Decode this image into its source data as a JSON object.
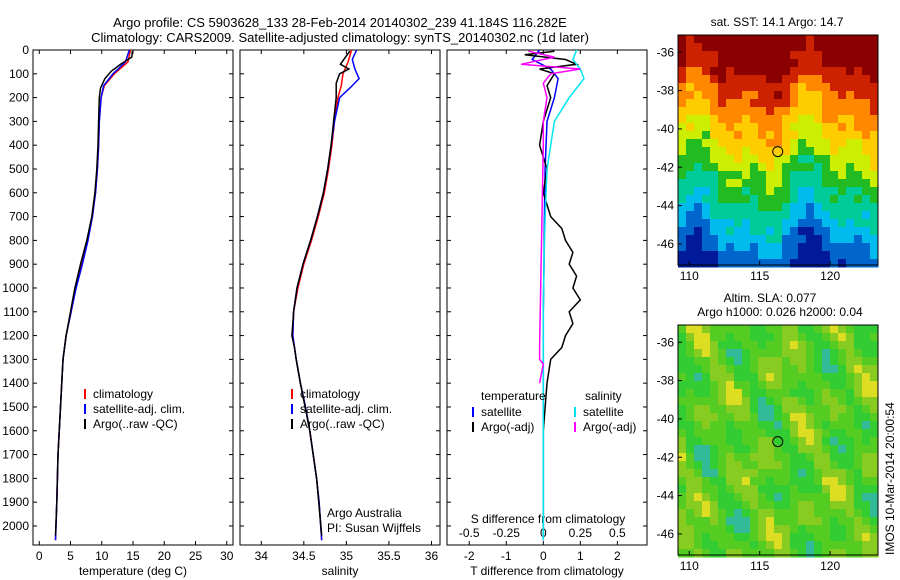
{
  "figure": {
    "title_line1": "Argo profile: CS 5903628_133 28-Feb-2014 20140302_239 41.184S 116.282E",
    "title_line2": "Climatology: CARS2009. Satellite-adjusted climatology: synTS_20140302.nc (1d later)",
    "side_label": "IMOS 10-Mar-2014 20:00:54",
    "credit_line1": "Argo Australia",
    "credit_line2": "PI: Susan Wijffels"
  },
  "chart_data": [
    {
      "type": "line",
      "panel": "temperature",
      "xlabel": "temperature (deg C)",
      "ylabel": "",
      "xlim": [
        -1,
        31
      ],
      "ylim": [
        2080,
        0
      ],
      "xticks": [
        0,
        5,
        10,
        15,
        20,
        25,
        30
      ],
      "yticks": [
        0,
        100,
        200,
        300,
        400,
        500,
        600,
        700,
        800,
        900,
        1000,
        1100,
        1200,
        1300,
        1400,
        1500,
        1600,
        1700,
        1800,
        1900,
        2000
      ],
      "grid": false,
      "legend": "lower-right",
      "legend_entries": [
        "climatology",
        "satellite-adj. clim.",
        "Argo(..raw -QC)"
      ],
      "series": [
        {
          "name": "climatology",
          "color": "#ff0000",
          "depth": [
            0,
            50,
            100,
            150,
            200,
            300,
            400,
            500,
            600,
            700,
            800,
            900,
            1000,
            1100,
            1200,
            1300,
            1500,
            1700,
            1900,
            2060
          ],
          "values": [
            14.6,
            14.2,
            12.0,
            10.4,
            9.9,
            9.6,
            9.5,
            9.3,
            9.0,
            8.5,
            7.7,
            6.7,
            5.8,
            5.1,
            4.3,
            3.8,
            3.4,
            3.0,
            2.8,
            2.6
          ]
        },
        {
          "name": "satellite-adj. clim.",
          "color": "#0000ff",
          "depth": [
            0,
            50,
            100,
            150,
            200,
            300,
            400,
            500,
            600,
            700,
            800,
            900,
            1000,
            1100,
            1200,
            1300,
            1500,
            1700,
            1900,
            2060
          ],
          "values": [
            14.4,
            13.8,
            11.8,
            10.3,
            9.9,
            9.6,
            9.5,
            9.3,
            9.0,
            8.5,
            7.8,
            6.9,
            5.9,
            5.1,
            4.3,
            3.8,
            3.4,
            3.0,
            2.8,
            2.6
          ]
        },
        {
          "name": "Argo(..raw -QC)",
          "color": "#000000",
          "depth": [
            5,
            30,
            60,
            90,
            120,
            160,
            200,
            300,
            400,
            500,
            600,
            700,
            800,
            900,
            1000,
            1100,
            1200,
            1300,
            1500,
            1700,
            1900,
            2040
          ],
          "values": [
            14.9,
            14.8,
            13.0,
            11.5,
            10.5,
            9.8,
            9.6,
            9.5,
            9.4,
            9.2,
            8.9,
            8.4,
            7.6,
            6.6,
            5.7,
            5.0,
            4.3,
            3.8,
            3.4,
            3.0,
            2.8,
            2.6
          ]
        }
      ]
    },
    {
      "type": "line",
      "panel": "salinity",
      "xlabel": "salinity",
      "ylabel": "",
      "xlim": [
        33.75,
        36.1
      ],
      "ylim": [
        2080,
        0
      ],
      "xticks": [
        34,
        34.5,
        35,
        35.5,
        36
      ],
      "grid": false,
      "legend": "lower-right",
      "legend_entries": [
        "climatology",
        "satellite-adj. clim.",
        "Argo(..raw -QC)"
      ],
      "series": [
        {
          "name": "climatology",
          "color": "#ff0000",
          "depth": [
            0,
            50,
            100,
            150,
            200,
            300,
            400,
            500,
            600,
            700,
            800,
            900,
            1000,
            1100,
            1200,
            1300,
            1400,
            1500,
            1600,
            1700,
            1800,
            1900,
            2060
          ],
          "values": [
            35.06,
            35.02,
            34.96,
            34.94,
            34.9,
            34.86,
            34.83,
            34.79,
            34.74,
            34.67,
            34.59,
            34.5,
            34.43,
            34.38,
            34.37,
            34.41,
            34.46,
            34.52,
            34.57,
            34.61,
            34.65,
            34.68,
            34.71
          ]
        },
        {
          "name": "satellite-adj. clim.",
          "color": "#0000ff",
          "depth": [
            0,
            40,
            80,
            120,
            160,
            200,
            300,
            400,
            500,
            600,
            700,
            800,
            900,
            1000,
            1100,
            1200,
            1300,
            1400,
            1500,
            1600,
            1700,
            1800,
            1900,
            2060
          ],
          "values": [
            35.12,
            35.07,
            35.1,
            35.15,
            35.04,
            34.92,
            34.86,
            34.82,
            34.78,
            34.73,
            34.66,
            34.58,
            34.49,
            34.42,
            34.38,
            34.37,
            34.41,
            34.46,
            34.52,
            34.57,
            34.61,
            34.65,
            34.68,
            34.71
          ]
        },
        {
          "name": "Argo(..raw -QC)",
          "color": "#000000",
          "depth": [
            5,
            30,
            60,
            80,
            100,
            140,
            200,
            300,
            400,
            500,
            600,
            700,
            800,
            900,
            1000,
            1100,
            1200,
            1250,
            1300,
            1400,
            1600,
            1800,
            2040
          ],
          "values": [
            35.04,
            34.99,
            34.93,
            35.03,
            34.92,
            34.88,
            34.88,
            34.85,
            34.82,
            34.78,
            34.73,
            34.66,
            34.58,
            34.49,
            34.42,
            34.38,
            34.36,
            34.39,
            34.41,
            34.46,
            34.57,
            34.65,
            34.71
          ]
        }
      ]
    },
    {
      "type": "line",
      "panel": "difference",
      "xlabel": "T difference from climatology",
      "xlabel_top": "S difference from climatology",
      "xlim": [
        -2.6,
        2.8
      ],
      "ylim": [
        2080,
        0
      ],
      "xticks": [
        -2,
        -1,
        0,
        1,
        2
      ],
      "xticks_s": [
        "-0.5",
        "-0.25",
        "0",
        "0.25",
        "0.5"
      ],
      "grid": false,
      "legend": "lower-center",
      "legend_headers": [
        "temperature",
        "salinity"
      ],
      "legend_entries": [
        "satellite",
        "Argo(-adj)",
        "satellite",
        "Argo(-adj)"
      ],
      "series": [
        {
          "name": "temperature satellite",
          "color": "#0000ff",
          "depth": [
            0,
            40,
            80,
            120,
            200,
            300,
            500,
            700,
            900,
            1100,
            1300,
            1500,
            1700,
            1900,
            2060
          ],
          "values": [
            -0.1,
            -0.3,
            0.2,
            0.4,
            0.3,
            0.1,
            0.05,
            0.03,
            0.02,
            0.0,
            0.0,
            0.0,
            0.0,
            0.0,
            0.0
          ]
        },
        {
          "name": "temperature Argo(-adj)",
          "color": "#000000",
          "depth": [
            5,
            20,
            40,
            60,
            80,
            100,
            150,
            200,
            300,
            400,
            500,
            600,
            700,
            750,
            800,
            850,
            900,
            950,
            1000,
            1050,
            1100,
            1150,
            1200,
            1250,
            1300,
            1400,
            1600,
            1800,
            2040
          ],
          "values": [
            0.3,
            -0.5,
            0.6,
            0.9,
            -0.1,
            0.3,
            0.1,
            0.2,
            0.0,
            -0.1,
            0.1,
            0.0,
            0.2,
            0.5,
            0.6,
            0.8,
            0.7,
            0.9,
            0.8,
            1.0,
            0.7,
            0.8,
            0.6,
            0.5,
            0.2,
            0.1,
            0.0,
            0.0,
            0.0
          ]
        },
        {
          "name": "salinity satellite",
          "color": "#00e5ee",
          "depth": [
            0,
            40,
            80,
            120,
            200,
            300,
            500,
            700,
            900,
            1100,
            1300,
            1500,
            1700,
            1900,
            2060
          ],
          "values": [
            0.9,
            0.8,
            1.0,
            1.1,
            0.7,
            0.3,
            0.1,
            0.05,
            0.02,
            0.0,
            0.0,
            0.0,
            0.0,
            0.0,
            0.0
          ]
        },
        {
          "name": "salinity Argo(-adj)",
          "color": "#ff00ff",
          "depth": [
            5,
            30,
            60,
            80,
            100,
            140,
            200,
            300,
            400,
            1250,
            1300,
            1320,
            1400
          ],
          "values": [
            -0.4,
            0.3,
            -0.6,
            1.0,
            0.2,
            0.0,
            0.1,
            0.0,
            0.0,
            -0.1,
            -0.1,
            0.0,
            -0.1
          ]
        }
      ]
    },
    {
      "type": "heatmap",
      "panel": "sst_map",
      "title": "sat. SST: 14.1  Argo: 14.7",
      "xlim": [
        109.2,
        123.4
      ],
      "ylim": [
        -47.1,
        -35.1
      ],
      "xticks": [
        110,
        115,
        120
      ],
      "yticks": [
        -36,
        -38,
        -40,
        -42,
        -44,
        -46
      ],
      "marker": {
        "lon": 116.282,
        "lat": -41.184
      },
      "colors": [
        "#8b0000",
        "#cc2200",
        "#ff8800",
        "#ffcc00",
        "#ccee00",
        "#22bb22",
        "#00cc99",
        "#00bbee",
        "#0066cc",
        "#001a99"
      ]
    },
    {
      "type": "heatmap",
      "panel": "sla_map",
      "title": "Altim. SLA: 0.077",
      "subtitle": "Argo h1000: 0.026 h2000: 0.04",
      "xlim": [
        109.2,
        123.4
      ],
      "ylim": [
        -47.1,
        -35.1
      ],
      "xticks": [
        110,
        115,
        120
      ],
      "yticks": [
        -36,
        -38,
        -40,
        -42,
        -44,
        -46
      ],
      "marker": {
        "lon": 116.282,
        "lat": -41.184
      },
      "colors": [
        "#3399ee",
        "#33bb99",
        "#33cc33",
        "#55cc22",
        "#88cc22",
        "#dddd22",
        "#ee9922",
        "#dd4411"
      ]
    }
  ]
}
